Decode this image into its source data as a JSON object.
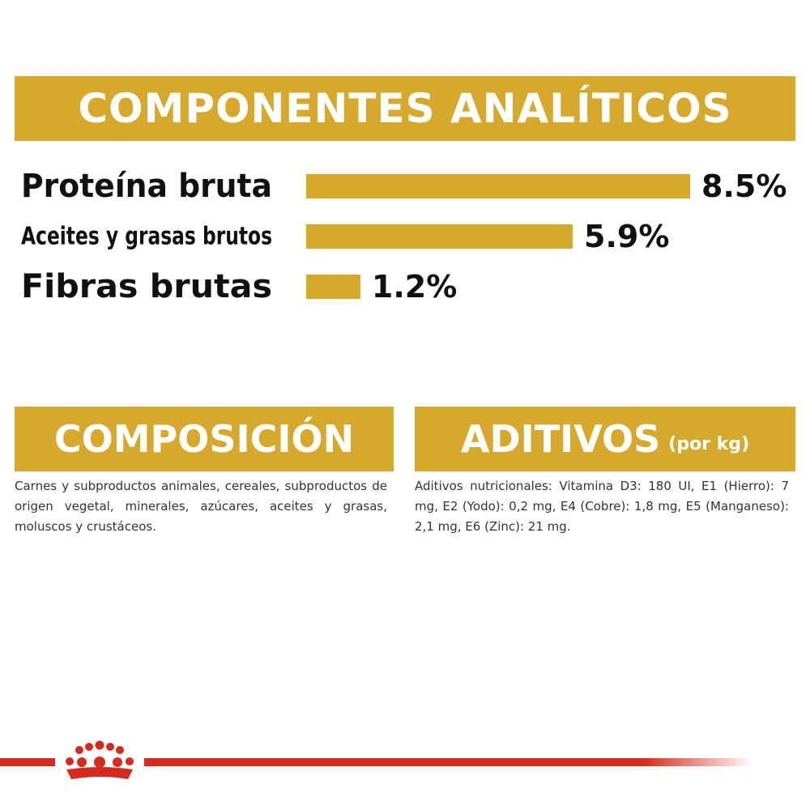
{
  "header": {
    "title": "COMPONENTES ANALÍTICOS"
  },
  "chart_data": {
    "type": "bar",
    "orientation": "horizontal",
    "categories": [
      "Proteína bruta",
      "Aceites y grasas brutos",
      "Fibras brutas"
    ],
    "values": [
      8.5,
      5.9,
      1.2
    ],
    "value_labels": [
      "8.5%",
      "5.9%",
      "1.2%"
    ],
    "bar_color": "#d6a82c",
    "xlim": [
      0,
      8.5
    ],
    "grid": false
  },
  "composicion": {
    "title": "COMPOSICIÓN",
    "text": "Carnes y subproductos animales, cereales, subproductos de origen vegetal, minerales, azúcares, aceites y grasas, moluscos y crustáceos."
  },
  "aditivos": {
    "title": "ADITIVOS",
    "title_suffix": "(por kg)",
    "text": "Aditivos nutricionales: Vitamina D3: 180 UI, E1 (Hierro): 7 mg, E2 (Yodo): 0,2 mg, E4 (Cobre): 1,8 mg, E5 (Manganeso): 2,1 mg, E6 (Zinc): 21 mg."
  },
  "colors": {
    "gold": "#d6a82c",
    "brand_red": "#d52b1e",
    "text": "#111111"
  },
  "footer": {
    "logo_icon": "crown-icon"
  }
}
